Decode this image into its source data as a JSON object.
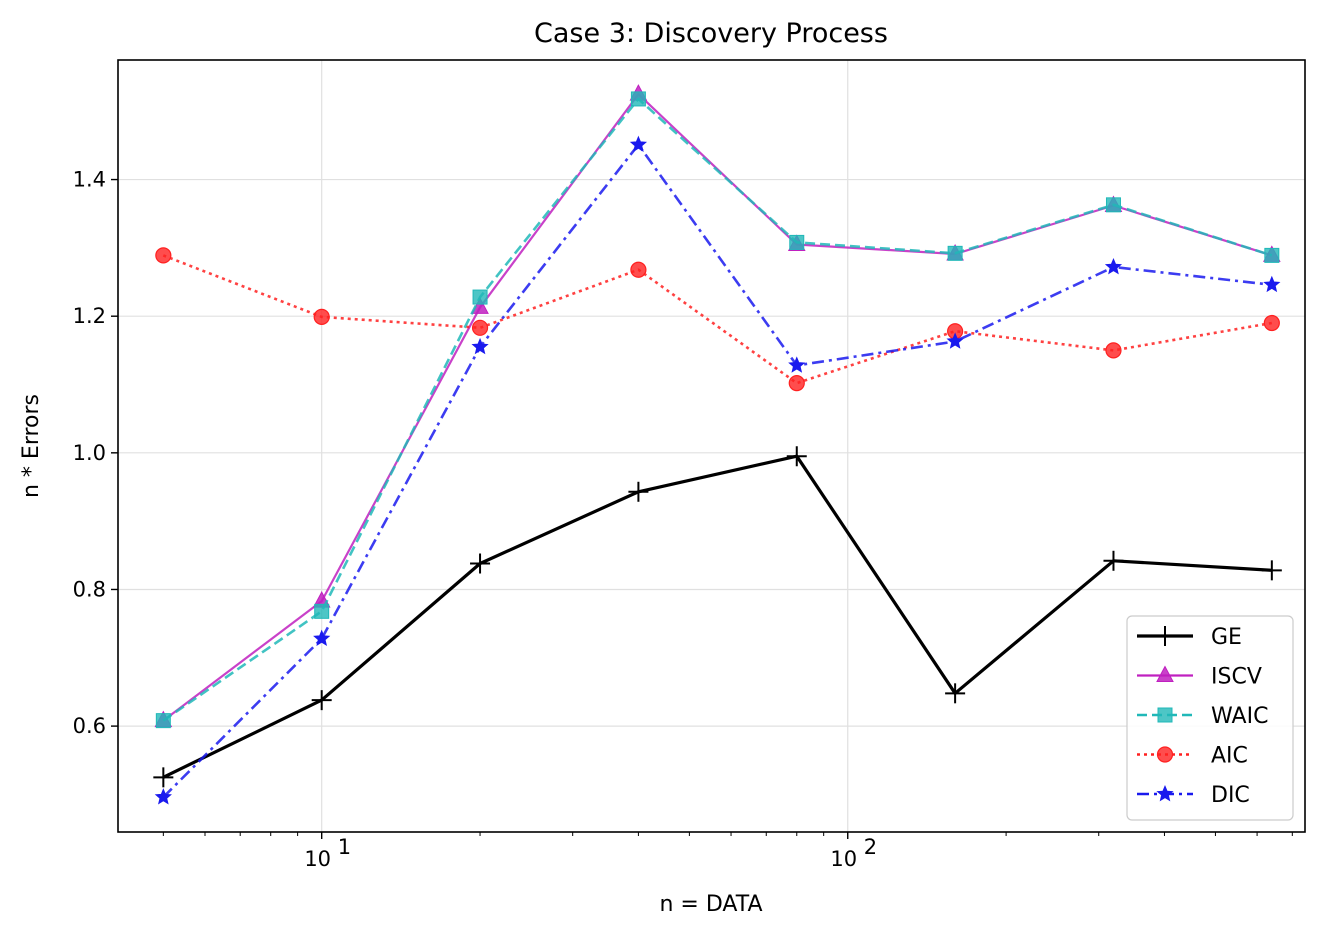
{
  "chart_data": {
    "type": "line",
    "title": "Case 3: Discovery Process",
    "xlabel": "n = DATA",
    "ylabel": "n * Errors",
    "xscale": "log",
    "xlim": [
      4.1,
      740
    ],
    "ylim": [
      0.445,
      1.575
    ],
    "grid": true,
    "legend_position": "lower-right",
    "x": [
      5,
      10,
      20,
      40,
      80,
      160,
      320,
      640
    ],
    "y_ticks": [
      0.6,
      0.8,
      1.0,
      1.2,
      1.4
    ],
    "y_tick_labels": [
      "0.6",
      "0.8",
      "1.0",
      "1.2",
      "1.4"
    ],
    "x_ticks": [
      10,
      100
    ],
    "x_tick_labels": [
      {
        "base": "10",
        "exp": "1"
      },
      {
        "base": "10",
        "exp": "2"
      }
    ],
    "series": [
      {
        "name": "GE",
        "color": "#000000",
        "marker": "plus",
        "dash": "",
        "width": 3.2,
        "values": [
          0.525,
          0.638,
          0.838,
          0.943,
          0.995,
          0.648,
          0.842,
          0.828
        ]
      },
      {
        "name": "ISCV",
        "color": "#c020c0",
        "marker": "triangle",
        "dash": "",
        "width": 2.2,
        "values": [
          0.608,
          0.783,
          1.213,
          1.525,
          1.305,
          1.291,
          1.362,
          1.289
        ]
      },
      {
        "name": "WAIC",
        "color": "#20b8b8",
        "marker": "square",
        "dash": "10,5",
        "width": 2.6,
        "values": [
          0.608,
          0.768,
          1.228,
          1.518,
          1.308,
          1.292,
          1.363,
          1.289
        ]
      },
      {
        "name": "AIC",
        "color": "#ff2020",
        "marker": "circle",
        "dash": "3,4",
        "width": 2.6,
        "values": [
          1.289,
          1.199,
          1.183,
          1.268,
          1.102,
          1.178,
          1.15,
          1.19
        ]
      },
      {
        "name": "DIC",
        "color": "#1a1aee",
        "marker": "star",
        "dash": "12,5,3,5",
        "width": 2.6,
        "values": [
          0.496,
          0.728,
          1.155,
          1.451,
          1.128,
          1.163,
          1.272,
          1.246
        ]
      }
    ]
  }
}
